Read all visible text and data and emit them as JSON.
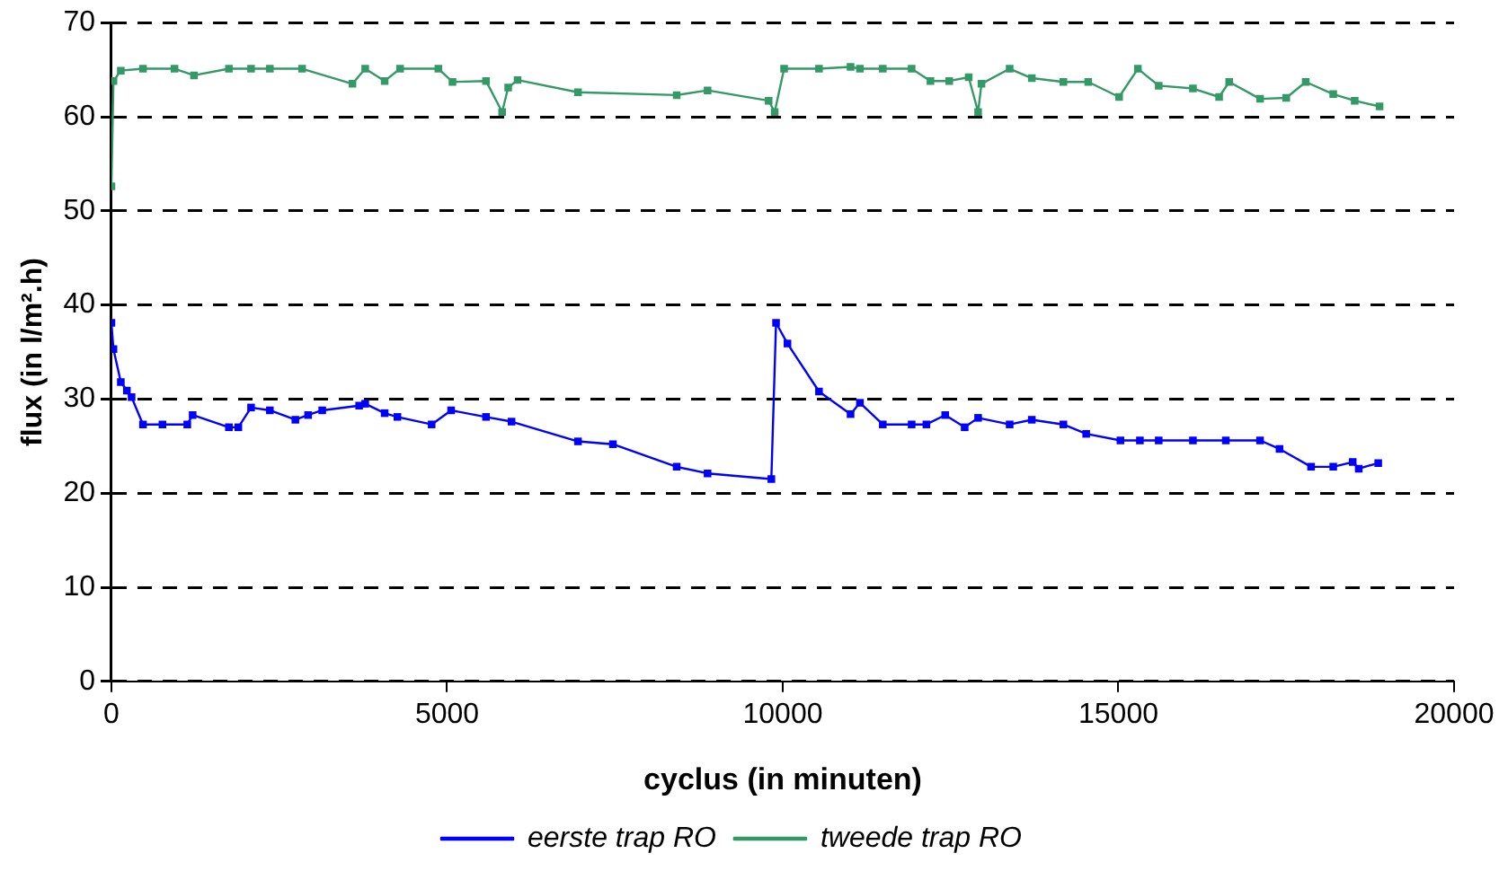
{
  "chart_data": {
    "type": "line",
    "xlabel": "cyclus (in minuten)",
    "ylabel": "flux (in l/m².h)",
    "xlim": [
      0,
      20000
    ],
    "xticks": [
      0,
      5000,
      10000,
      15000,
      20000
    ],
    "ylim": [
      0,
      70
    ],
    "yticks": [
      0,
      10,
      20,
      30,
      40,
      50,
      60,
      70
    ],
    "grid": "y",
    "legend": "bottom",
    "marker": "square",
    "line_style": "solid",
    "series": [
      {
        "name": "eerste trap RO",
        "color": "#0000ff",
        "x": [
          0,
          30,
          140,
          230,
          300,
          470,
          760,
          1130,
          1210,
          1750,
          1890,
          2080,
          2360,
          2740,
          2930,
          3140,
          3690,
          3780,
          4070,
          4260,
          4770,
          5060,
          5580,
          5960,
          6950,
          7470,
          8420,
          8880,
          9830,
          9900,
          10070,
          10540,
          11010,
          11150,
          11490,
          11920,
          12140,
          12420,
          12710,
          12910,
          13380,
          13710,
          14180,
          14520,
          15030,
          15320,
          15600,
          16110,
          16600,
          17110,
          17400,
          17870,
          18200,
          18490,
          18580,
          18870
        ],
        "values": [
          38.1,
          35.3,
          31.8,
          30.9,
          30.2,
          27.3,
          27.3,
          27.3,
          28.3,
          27,
          27,
          29.1,
          28.8,
          27.8,
          28.3,
          28.8,
          29.3,
          29.5,
          28.5,
          28.1,
          27.3,
          28.8,
          28.1,
          27.6,
          25.5,
          25.2,
          22.8,
          22.1,
          21.5,
          38.1,
          35.9,
          30.8,
          28.4,
          29.6,
          27.3,
          27.3,
          27.3,
          28.3,
          27,
          28,
          27.3,
          27.8,
          27.3,
          26.3,
          25.6,
          25.6,
          25.6,
          25.6,
          25.6,
          25.6,
          24.7,
          22.8,
          22.8,
          23.3,
          22.6,
          23.2
        ]
      },
      {
        "name": "tweede trap RO",
        "color": "#339966",
        "x": [
          0,
          30,
          140,
          470,
          940,
          1230,
          1750,
          2080,
          2360,
          2840,
          3590,
          3780,
          4070,
          4300,
          4870,
          5080,
          5580,
          5820,
          5910,
          6050,
          6950,
          8420,
          8880,
          9790,
          9880,
          10020,
          10540,
          11010,
          11150,
          11490,
          11920,
          12200,
          12480,
          12770,
          12910,
          12960,
          13380,
          13710,
          14180,
          14550,
          15010,
          15290,
          15600,
          16110,
          16500,
          16650,
          17110,
          17500,
          17790,
          18200,
          18520,
          18890
        ],
        "values": [
          52.6,
          63.8,
          64.9,
          65.1,
          65.1,
          64.4,
          65.1,
          65.1,
          65.1,
          65.1,
          63.5,
          65.1,
          63.8,
          65.1,
          65.1,
          63.7,
          63.8,
          60.5,
          63.1,
          63.9,
          62.6,
          62.3,
          62.8,
          61.7,
          60.5,
          65.1,
          65.1,
          65.3,
          65.1,
          65.1,
          65.1,
          63.8,
          63.8,
          64.2,
          60.5,
          63.5,
          65.1,
          64.1,
          63.7,
          63.7,
          62.1,
          65.1,
          63.3,
          63,
          62.1,
          63.7,
          61.9,
          62,
          63.7,
          62.4,
          61.7,
          61.1
        ]
      }
    ]
  }
}
